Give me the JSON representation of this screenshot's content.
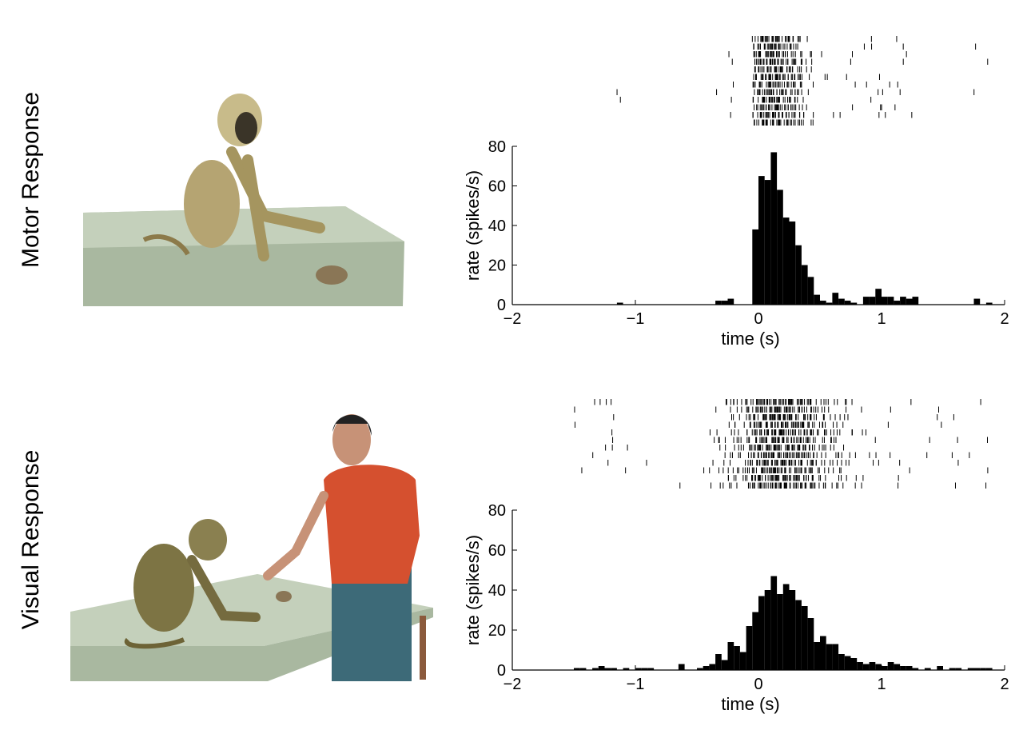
{
  "chart_data": [
    {
      "type": "histogram",
      "title": "Motor Response",
      "xlabel": "time (s)",
      "ylabel": "rate (spikes/s)",
      "color": "#000000",
      "bins": [
        -2,
        -1.95,
        -1.9,
        -1.85,
        -1.8,
        -1.75,
        -1.7,
        -1.65,
        -1.6,
        -1.55,
        -1.5,
        -1.45,
        -1.4,
        -1.35,
        -1.3,
        -1.25,
        -1.2,
        -1.15,
        -1.1,
        -1.05,
        -1,
        -0.95,
        -0.9,
        -0.85,
        -0.8,
        -0.75,
        -0.7,
        -0.65,
        -0.6,
        -0.55,
        -0.5,
        -0.45,
        -0.4,
        -0.35,
        -0.3,
        -0.25,
        -0.2,
        -0.15,
        -0.1,
        -0.05,
        0,
        0.05,
        0.1,
        0.15,
        0.2,
        0.25,
        0.3,
        0.35,
        0.4,
        0.45,
        0.5,
        0.55,
        0.6,
        0.65,
        0.7,
        0.75,
        0.8,
        0.85,
        0.9,
        0.95,
        1,
        1.05,
        1.1,
        1.15,
        1.2,
        1.25,
        1.3,
        1.35,
        1.4,
        1.45,
        1.5,
        1.55,
        1.6,
        1.65,
        1.7,
        1.75,
        1.8,
        1.85,
        1.9,
        1.95,
        2
      ],
      "values": [
        0,
        0,
        0,
        0,
        0,
        0,
        0,
        0,
        0,
        0,
        0,
        0,
        0,
        0,
        0,
        0,
        0,
        1,
        0,
        0,
        0,
        0,
        0,
        0,
        0,
        0,
        0,
        0,
        0,
        0,
        0,
        0,
        0,
        2,
        2,
        3,
        0,
        0,
        0,
        38,
        65,
        63,
        77,
        58,
        44,
        42,
        30,
        20,
        14,
        5,
        2,
        1,
        6,
        3,
        2,
        1,
        0,
        4,
        4,
        8,
        4,
        4,
        2,
        4,
        3,
        4,
        0,
        0,
        0,
        0,
        0,
        0,
        0,
        0,
        0,
        3,
        0,
        1,
        0,
        0
      ],
      "xlim": [
        -2,
        2
      ],
      "ylim": [
        0,
        80
      ],
      "xticks": [
        {
          "value": -2,
          "label": "−2"
        },
        {
          "value": -1,
          "label": "−1"
        },
        0,
        1,
        2
      ],
      "yticks": [
        0,
        20,
        40,
        60,
        80
      ]
    },
    {
      "type": "histogram",
      "title": "Visual Response",
      "xlabel": "time (s)",
      "ylabel": "rate (spikes/s)",
      "color": "#000000",
      "bins": [
        -2,
        -1.95,
        -1.9,
        -1.85,
        -1.8,
        -1.75,
        -1.7,
        -1.65,
        -1.6,
        -1.55,
        -1.5,
        -1.45,
        -1.4,
        -1.35,
        -1.3,
        -1.25,
        -1.2,
        -1.15,
        -1.1,
        -1.05,
        -1,
        -0.95,
        -0.9,
        -0.85,
        -0.8,
        -0.75,
        -0.7,
        -0.65,
        -0.6,
        -0.55,
        -0.5,
        -0.45,
        -0.4,
        -0.35,
        -0.3,
        -0.25,
        -0.2,
        -0.15,
        -0.1,
        -0.05,
        0,
        0.05,
        0.1,
        0.15,
        0.2,
        0.25,
        0.3,
        0.35,
        0.4,
        0.45,
        0.5,
        0.55,
        0.6,
        0.65,
        0.7,
        0.75,
        0.8,
        0.85,
        0.9,
        0.95,
        1,
        1.05,
        1.1,
        1.15,
        1.2,
        1.25,
        1.3,
        1.35,
        1.4,
        1.45,
        1.5,
        1.55,
        1.6,
        1.65,
        1.7,
        1.75,
        1.8,
        1.85,
        1.9,
        1.95,
        2
      ],
      "values": [
        0,
        0,
        0,
        0,
        0,
        0,
        0,
        0,
        0,
        0,
        1,
        1,
        0,
        1,
        2,
        1,
        1,
        0,
        1,
        0,
        1,
        1,
        1,
        0,
        0,
        0,
        0,
        3,
        0,
        0,
        1,
        2,
        3,
        8,
        5,
        14,
        12,
        9,
        22,
        29,
        37,
        40,
        47,
        38,
        43,
        40,
        35,
        32,
        26,
        14,
        17,
        13,
        13,
        8,
        7,
        6,
        4,
        3,
        4,
        3,
        2,
        4,
        3,
        2,
        2,
        1,
        0,
        1,
        0,
        2,
        0,
        1,
        1,
        0,
        1,
        1,
        1,
        1,
        0,
        0
      ],
      "xlim": [
        -2,
        2
      ],
      "ylim": [
        0,
        80
      ],
      "xticks": [
        {
          "value": -2,
          "label": "−2"
        },
        {
          "value": -1,
          "label": "−1"
        },
        0,
        1,
        2
      ],
      "yticks": [
        0,
        20,
        40,
        60,
        80
      ]
    }
  ]
}
